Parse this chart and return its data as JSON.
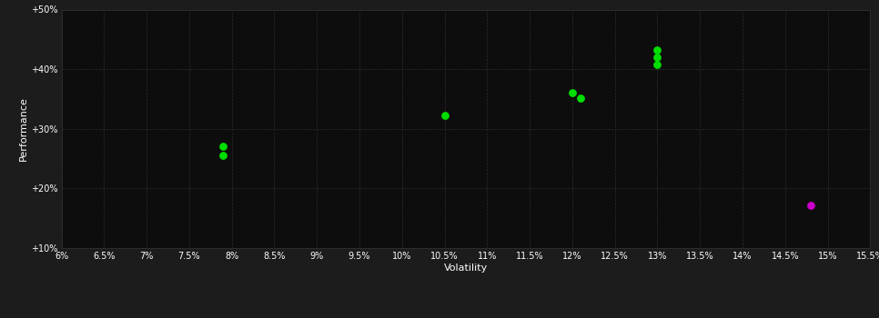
{
  "background_color": "#1c1c1c",
  "plot_bg_color": "#0d0d0d",
  "grid_color": "#2d2d2d",
  "text_color": "#ffffff",
  "xlabel": "Volatility",
  "ylabel": "Performance",
  "xlim": [
    0.06,
    0.155
  ],
  "ylim": [
    0.1,
    0.5
  ],
  "xticks": [
    0.06,
    0.065,
    0.07,
    0.075,
    0.08,
    0.085,
    0.09,
    0.095,
    0.1,
    0.105,
    0.11,
    0.115,
    0.12,
    0.125,
    0.13,
    0.135,
    0.14,
    0.145,
    0.15,
    0.155
  ],
  "xtick_labels": [
    "6%",
    "6.5%",
    "7%",
    "7.5%",
    "8%",
    "8.5%",
    "9%",
    "9.5%",
    "10%",
    "10.5%",
    "11%",
    "11.5%",
    "12%",
    "12.5%",
    "13%",
    "13.5%",
    "14%",
    "14.5%",
    "15%",
    "15.5%"
  ],
  "yticks": [
    0.1,
    0.2,
    0.3,
    0.4,
    0.5
  ],
  "ytick_labels": [
    "+10%",
    "+20%",
    "+30%",
    "+40%",
    "+50%"
  ],
  "green_points": [
    [
      0.079,
      0.271
    ],
    [
      0.079,
      0.256
    ],
    [
      0.105,
      0.323
    ],
    [
      0.12,
      0.36
    ],
    [
      0.121,
      0.352
    ],
    [
      0.13,
      0.432
    ],
    [
      0.13,
      0.42
    ],
    [
      0.13,
      0.408
    ]
  ],
  "magenta_points": [
    [
      0.148,
      0.172
    ]
  ],
  "green_color": "#00dd00",
  "magenta_color": "#cc00cc",
  "marker_size": 28
}
